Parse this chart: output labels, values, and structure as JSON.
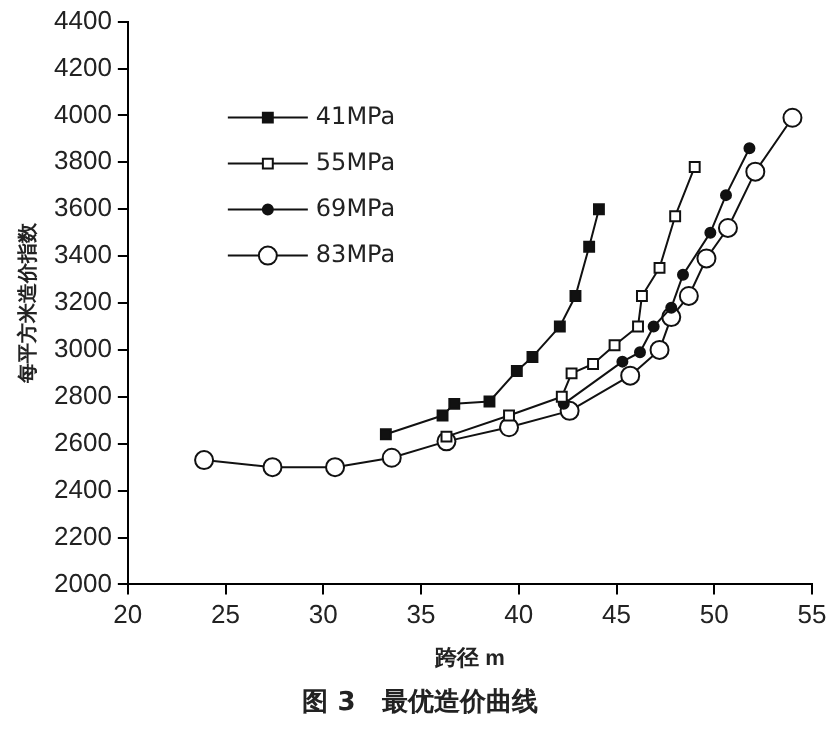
{
  "chart_data": {
    "type": "line",
    "title": "图 3　最优造价曲线",
    "xlabel": "跨径 m",
    "ylabel": "每平方米造价指数",
    "xlim": [
      20,
      55
    ],
    "xticks": [
      20,
      25,
      30,
      35,
      40,
      45,
      50,
      55
    ],
    "ylim": [
      2000,
      4400
    ],
    "yticks": [
      2000,
      2200,
      2400,
      2600,
      2800,
      3000,
      3200,
      3400,
      3600,
      3800,
      4000,
      4200,
      4400
    ],
    "grid": false,
    "legend": "top left",
    "line_style": "solid",
    "series": [
      {
        "name": "41MPa",
        "color": "#111111",
        "marker": "square",
        "x": [
          33.2,
          36.1,
          36.7,
          38.5,
          39.9,
          40.7,
          42.1,
          42.9,
          43.6,
          44.1
        ],
        "values": [
          2640,
          2720,
          2770,
          2780,
          2910,
          2970,
          3100,
          3230,
          3440,
          3600
        ]
      },
      {
        "name": "55MPa",
        "color": "#111111",
        "colors": [
          "#ffffff",
          "#ffffff",
          "#ffffff",
          "#ffffff",
          "#ffffff",
          "#ffffff",
          "#ffffff",
          "#ffffff",
          "#ffffff",
          "#ffffff",
          "#ffffff"
        ],
        "marker": "square",
        "x": [
          36.3,
          39.5,
          42.2,
          42.7,
          43.8,
          44.9,
          46.1,
          46.3,
          47.2,
          48.0,
          49.0
        ],
        "values": [
          2630,
          2720,
          2800,
          2900,
          2940,
          3020,
          3100,
          3230,
          3350,
          3570,
          3780
        ]
      },
      {
        "name": "69MPa",
        "color": "#111111",
        "marker": "circle",
        "x": [
          42.3,
          45.3,
          46.2,
          46.9,
          47.8,
          48.4,
          49.8,
          50.6,
          51.8
        ],
        "values": [
          2770,
          2950,
          2990,
          3100,
          3180,
          3320,
          3500,
          3660,
          3860
        ]
      },
      {
        "name": "83MPa",
        "color": "#111111",
        "colors": [
          "#ffffff",
          "#ffffff",
          "#ffffff",
          "#ffffff",
          "#ffffff",
          "#ffffff",
          "#ffffff",
          "#ffffff",
          "#ffffff",
          "#ffffff",
          "#ffffff",
          "#ffffff",
          "#ffffff",
          "#ffffff",
          "#ffffff"
        ],
        "marker": "circle",
        "x": [
          23.9,
          27.4,
          30.6,
          33.5,
          36.3,
          39.5,
          42.6,
          45.7,
          47.2,
          47.8,
          48.7,
          49.6,
          50.7,
          52.1,
          54.0
        ],
        "values": [
          2530,
          2500,
          2500,
          2540,
          2610,
          2670,
          2740,
          2890,
          3000,
          3140,
          3230,
          3390,
          3520,
          3760,
          3990
        ]
      }
    ]
  }
}
